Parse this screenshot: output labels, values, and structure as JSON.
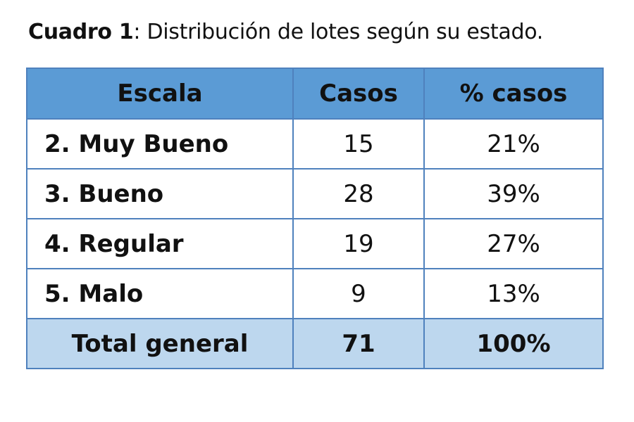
{
  "caption": {
    "label": "Cuadro 1",
    "text": ": Distribución de lotes según su estado."
  },
  "table": {
    "headers": [
      "Escala",
      "Casos",
      "% casos"
    ],
    "rows": [
      {
        "escala": "2. Muy Bueno",
        "casos": "15",
        "pct": "21%"
      },
      {
        "escala": "3. Bueno",
        "casos": "28",
        "pct": "39%"
      },
      {
        "escala": "4. Regular",
        "casos": "19",
        "pct": "27%"
      },
      {
        "escala": "5. Malo",
        "casos": "9",
        "pct": "13%"
      }
    ],
    "total": {
      "escala": "Total general",
      "casos": "71",
      "pct": "100%"
    }
  },
  "colors": {
    "header_bg": "#5b9bd5",
    "total_bg": "#bdd7ee",
    "border": "#4f81bd"
  }
}
